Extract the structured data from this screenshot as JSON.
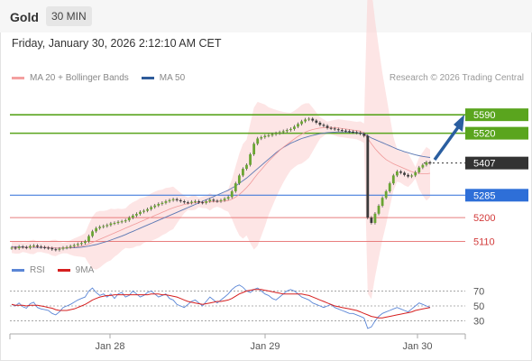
{
  "header": {
    "title": "Gold",
    "timeframe": "30 MIN"
  },
  "date_label": "Friday, January 30, 2026 2:12:10 AM CET",
  "legend": [
    {
      "label": "MA 20 + Bollinger Bands",
      "color": "#f4a0a0"
    },
    {
      "label": "MA 50",
      "color": "#2f5c9a"
    }
  ],
  "credit": "Research © 2026 Trading Central",
  "rsi_legend": [
    {
      "label": "RSI",
      "color": "#5b86d6"
    },
    {
      "label": "9MA",
      "color": "#d62020"
    }
  ],
  "chart_data": {
    "type": "candlestick",
    "x_tick_labels": [
      "Jan 28",
      "Jan 29",
      "Jan 30"
    ],
    "y_range": [
      5050,
      5700
    ],
    "price_levels": [
      {
        "label": "5590",
        "value": 5590,
        "kind": "resistance",
        "color": "#5aa51e"
      },
      {
        "label": "5520",
        "value": 5520,
        "kind": "resistance",
        "color": "#5aa51e"
      },
      {
        "label": "5407",
        "value": 5407,
        "kind": "last",
        "color": "#333333"
      },
      {
        "label": "5285",
        "value": 5285,
        "kind": "pivot",
        "color": "#2e6fd8"
      },
      {
        "label": "5200",
        "value": 5200,
        "kind": "support",
        "color": "#e87e7e"
      },
      {
        "label": "5110",
        "value": 5110,
        "kind": "support",
        "color": "#e87e7e"
      }
    ],
    "closes": [
      5086,
      5084,
      5090,
      5088,
      5086,
      5092,
      5094,
      5090,
      5088,
      5086,
      5084,
      5080,
      5078,
      5082,
      5086,
      5088,
      5092,
      5096,
      5100,
      5104,
      5110,
      5130,
      5148,
      5160,
      5165,
      5168,
      5172,
      5178,
      5180,
      5184,
      5186,
      5190,
      5200,
      5208,
      5214,
      5222,
      5226,
      5232,
      5240,
      5246,
      5252,
      5256,
      5262,
      5266,
      5270,
      5266,
      5262,
      5258,
      5256,
      5260,
      5262,
      5258,
      5256,
      5262,
      5268,
      5264,
      5262,
      5266,
      5272,
      5278,
      5300,
      5330,
      5360,
      5385,
      5400,
      5440,
      5480,
      5500,
      5505,
      5510,
      5512,
      5516,
      5520,
      5524,
      5528,
      5532,
      5536,
      5545,
      5555,
      5565,
      5572,
      5575,
      5568,
      5560,
      5552,
      5548,
      5540,
      5538,
      5535,
      5532,
      5530,
      5528,
      5526,
      5524,
      5522,
      5518,
      5510,
      5200,
      5180,
      5215,
      5245,
      5275,
      5300,
      5330,
      5360,
      5375,
      5370,
      5362,
      5356,
      5360,
      5372,
      5390,
      5400,
      5410,
      5406
    ],
    "ma20": [
      5088,
      5087,
      5087,
      5088,
      5087,
      5088,
      5089,
      5089,
      5088,
      5088,
      5087,
      5086,
      5085,
      5085,
      5085,
      5086,
      5087,
      5088,
      5090,
      5092,
      5095,
      5100,
      5106,
      5112,
      5118,
      5124,
      5130,
      5136,
      5142,
      5148,
      5154,
      5160,
      5166,
      5172,
      5178,
      5184,
      5190,
      5196,
      5202,
      5208,
      5214,
      5220,
      5226,
      5232,
      5237,
      5242,
      5246,
      5250,
      5253,
      5255,
      5257,
      5258,
      5258,
      5259,
      5260,
      5261,
      5261,
      5262,
      5263,
      5265,
      5270,
      5278,
      5288,
      5300,
      5314,
      5330,
      5348,
      5366,
      5382,
      5398,
      5414,
      5428,
      5442,
      5455,
      5467,
      5478,
      5488,
      5498,
      5508,
      5516,
      5524,
      5530,
      5534,
      5537,
      5540,
      5541,
      5542,
      5542,
      5541,
      5540,
      5538,
      5536,
      5534,
      5532,
      5530,
      5528,
      5520,
      5500,
      5480,
      5462,
      5446,
      5432,
      5420,
      5412,
      5404,
      5398,
      5392,
      5386,
      5380,
      5374,
      5370,
      5368,
      5366,
      5366,
      5368
    ],
    "ma50": [
      5090,
      5089,
      5089,
      5089,
      5088,
      5088,
      5088,
      5087,
      5087,
      5087,
      5086,
      5086,
      5085,
      5085,
      5085,
      5085,
      5086,
      5086,
      5087,
      5088,
      5090,
      5092,
      5095,
      5098,
      5102,
      5106,
      5110,
      5115,
      5120,
      5125,
      5130,
      5136,
      5142,
      5148,
      5154,
      5160,
      5166,
      5172,
      5178,
      5184,
      5190,
      5196,
      5202,
      5208,
      5214,
      5220,
      5226,
      5232,
      5238,
      5244,
      5250,
      5256,
      5262,
      5268,
      5274,
      5280,
      5286,
      5292,
      5298,
      5304,
      5312,
      5320,
      5330,
      5340,
      5350,
      5362,
      5374,
      5386,
      5398,
      5410,
      5422,
      5434,
      5446,
      5456,
      5466,
      5474,
      5482,
      5488,
      5494,
      5500,
      5504,
      5508,
      5512,
      5515,
      5518,
      5520,
      5522,
      5523,
      5524,
      5525,
      5525,
      5525,
      5524,
      5523,
      5522,
      5520,
      5518,
      5510,
      5502,
      5496,
      5490,
      5484,
      5478,
      5472,
      5466,
      5460,
      5455,
      5450,
      5446,
      5442,
      5438,
      5435,
      5432,
      5430,
      5428
    ],
    "rsi_range": [
      15,
      85
    ],
    "rsi_ticks": [
      70,
      50,
      30
    ],
    "rsi": [
      52,
      50,
      54,
      49,
      47,
      53,
      55,
      48,
      46,
      45,
      44,
      40,
      38,
      42,
      48,
      50,
      52,
      55,
      58,
      60,
      62,
      70,
      74,
      68,
      64,
      66,
      62,
      66,
      60,
      66,
      68,
      62,
      64,
      70,
      66,
      62,
      64,
      68,
      70,
      66,
      62,
      64,
      66,
      60,
      58,
      52,
      50,
      48,
      52,
      56,
      58,
      54,
      50,
      56,
      62,
      58,
      54,
      58,
      62,
      66,
      72,
      76,
      78,
      75,
      70,
      68,
      72,
      74,
      70,
      66,
      64,
      60,
      58,
      62,
      66,
      70,
      72,
      70,
      66,
      62,
      60,
      58,
      54,
      52,
      50,
      48,
      50,
      52,
      48,
      46,
      44,
      42,
      40,
      40,
      38,
      36,
      34,
      20,
      22,
      30,
      36,
      40,
      42,
      44,
      46,
      48,
      46,
      44,
      42,
      46,
      50,
      54,
      52,
      50,
      48
    ],
    "rsi_ma9": [
      52,
      51,
      51,
      51,
      50,
      51,
      51,
      51,
      50,
      49,
      48,
      47,
      45,
      44,
      44,
      44,
      45,
      46,
      48,
      50,
      52,
      55,
      58,
      60,
      62,
      63,
      64,
      64,
      65,
      65,
      65,
      65,
      65,
      65,
      65,
      65,
      65,
      65,
      66,
      66,
      66,
      65,
      65,
      64,
      63,
      62,
      60,
      58,
      56,
      55,
      54,
      53,
      52,
      53,
      54,
      55,
      56,
      56,
      57,
      58,
      60,
      63,
      66,
      68,
      70,
      71,
      72,
      72,
      72,
      71,
      70,
      69,
      68,
      67,
      66,
      66,
      66,
      66,
      66,
      66,
      65,
      64,
      62,
      60,
      58,
      56,
      54,
      52,
      50,
      49,
      48,
      47,
      46,
      45,
      44,
      42,
      40,
      38,
      36,
      35,
      34,
      34,
      35,
      36,
      37,
      38,
      39,
      40,
      41,
      42,
      44,
      45,
      46,
      47,
      48
    ]
  }
}
